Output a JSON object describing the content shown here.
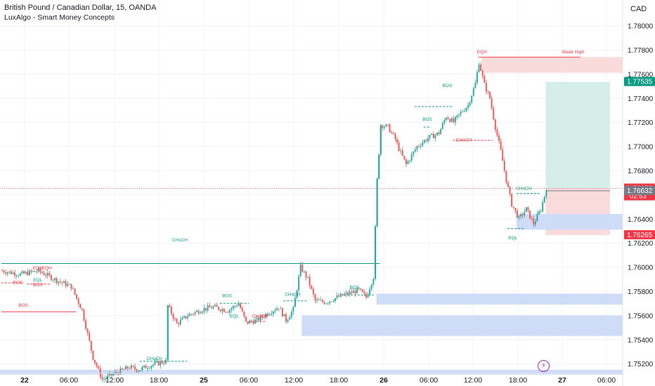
{
  "header": {
    "title": "British Pound / Canadian Dollar, 15, OANDA",
    "indicator": "LuxAlgo - Smart Money Concepts",
    "currency": "CAD"
  },
  "colors": {
    "up": "#26a69a",
    "down": "#ef5350",
    "bull_struct": "#089981",
    "bear_struct": "#f23645",
    "demand_zone": "#cfdcf7",
    "tp_zone": "#d5eee9",
    "sl_zone": "#fadbdc",
    "premium_zone": "#fadbdc"
  },
  "chart_data": {
    "type": "candlestick",
    "x_ticks": [
      "22",
      "06:00",
      "12:00",
      "18:00",
      "25",
      "06:00",
      "12:00",
      "18:00",
      "26",
      "06:00",
      "12:00",
      "18:00",
      "27",
      "06:00"
    ],
    "y_ticks": [
      "1.78000",
      "1.77800",
      "1.77600",
      "1.77400",
      "1.77200",
      "1.77000",
      "1.76800",
      "1.76600",
      "1.76400",
      "1.76200",
      "1.76000",
      "1.75800",
      "1.75600",
      "1.75400",
      "1.75200"
    ],
    "ylim": [
      1.7512,
      1.7805
    ],
    "bar_count": 300,
    "price_labels": [
      {
        "value": 1.77535,
        "text": "1.77535",
        "color": "#089981"
      },
      {
        "value": 1.76652,
        "text": "1.76652",
        "sub": "02:53",
        "color": "#f23645"
      },
      {
        "value": 1.76632,
        "text": "1.76632",
        "color": "#787b86"
      },
      {
        "value": 1.76265,
        "text": "1.76265",
        "color": "#f23645"
      }
    ],
    "close_path": [
      [
        0,
        1.7597
      ],
      [
        10,
        1.7594
      ],
      [
        20,
        1.7597
      ],
      [
        30,
        1.7589
      ],
      [
        38,
        1.7584
      ],
      [
        44,
        1.7564
      ],
      [
        50,
        1.7525
      ],
      [
        55,
        1.7507
      ],
      [
        62,
        1.7512
      ],
      [
        70,
        1.7517
      ],
      [
        75,
        1.7515
      ],
      [
        82,
        1.7519
      ],
      [
        90,
        1.7522
      ],
      [
        91,
        1.7568
      ],
      [
        96,
        1.7553
      ],
      [
        102,
        1.756
      ],
      [
        110,
        1.7565
      ],
      [
        116,
        1.7567
      ],
      [
        124,
        1.7564
      ],
      [
        130,
        1.757
      ],
      [
        134,
        1.7554
      ],
      [
        140,
        1.7556
      ],
      [
        146,
        1.7562
      ],
      [
        152,
        1.7567
      ],
      [
        156,
        1.7556
      ],
      [
        160,
        1.7565
      ],
      [
        164,
        1.76
      ],
      [
        168,
        1.759
      ],
      [
        172,
        1.7572
      ],
      [
        178,
        1.7571
      ],
      [
        184,
        1.7575
      ],
      [
        190,
        1.7578
      ],
      [
        196,
        1.7581
      ],
      [
        200,
        1.7575
      ],
      [
        204,
        1.7592
      ],
      [
        206,
        1.7672
      ],
      [
        208,
        1.7718
      ],
      [
        212,
        1.7716
      ],
      [
        216,
        1.7706
      ],
      [
        218,
        1.7698
      ],
      [
        222,
        1.7685
      ],
      [
        228,
        1.77
      ],
      [
        234,
        1.7707
      ],
      [
        240,
        1.7711
      ],
      [
        244,
        1.7725
      ],
      [
        248,
        1.772
      ],
      [
        252,
        1.7728
      ],
      [
        256,
        1.7734
      ],
      [
        260,
        1.7752
      ],
      [
        262,
        1.777
      ],
      [
        265,
        1.7751
      ],
      [
        268,
        1.774
      ],
      [
        271,
        1.7716
      ],
      [
        274,
        1.7696
      ],
      [
        277,
        1.7672
      ],
      [
        280,
        1.7652
      ],
      [
        284,
        1.764
      ],
      [
        288,
        1.7648
      ],
      [
        292,
        1.7636
      ],
      [
        296,
        1.7648
      ],
      [
        299,
        1.7665
      ]
    ],
    "structure_labels": [
      {
        "text": "BOS",
        "kind": "bear",
        "x": 9,
        "y": 1.7585
      },
      {
        "text": "BOS",
        "kind": "bear",
        "x": 20,
        "y": 1.7583
      },
      {
        "text": "EQH",
        "kind": "bear",
        "x": 20,
        "y": 1.7597
      },
      {
        "text": "EQH",
        "kind": "bear",
        "x": 25,
        "y": 1.7597
      },
      {
        "text": "EQL",
        "kind": "bull",
        "x": 20,
        "y": 1.7587
      },
      {
        "text": "BOS",
        "kind": "bear",
        "x": 12,
        "y": 1.7566
      },
      {
        "text": "CHoCH",
        "kind": "bull",
        "x": 98,
        "y": 1.762
      },
      {
        "text": "CHoCH",
        "kind": "bull",
        "x": 84,
        "y": 1.7522
      },
      {
        "text": "BOS",
        "kind": "bull",
        "x": 124,
        "y": 1.7574
      },
      {
        "text": "EQL",
        "kind": "bull",
        "x": 128,
        "y": 1.7557
      },
      {
        "text": "CHoCH",
        "kind": "bear",
        "x": 142,
        "y": 1.7557
      },
      {
        "text": "CHoCH",
        "kind": "bull",
        "x": 160,
        "y": 1.7575
      },
      {
        "text": "BOS",
        "kind": "bull",
        "x": 194,
        "y": 1.7581
      },
      {
        "text": "BOS",
        "kind": "bull",
        "x": 245,
        "y": 1.7748
      },
      {
        "text": "BOS",
        "kind": "bull",
        "x": 234,
        "y": 1.772
      },
      {
        "text": "CHoCH",
        "kind": "bear",
        "x": 254,
        "y": 1.7703
      },
      {
        "text": "EQH",
        "kind": "bear",
        "x": 264,
        "y": 1.7776
      },
      {
        "text": "Weak High",
        "kind": "bear",
        "x": 314,
        "y": 1.7776
      },
      {
        "text": "CHoCH",
        "kind": "bull",
        "x": 287,
        "y": 1.7663
      },
      {
        "text": "EQL",
        "kind": "bull",
        "x": 281,
        "y": 1.7622
      }
    ]
  }
}
